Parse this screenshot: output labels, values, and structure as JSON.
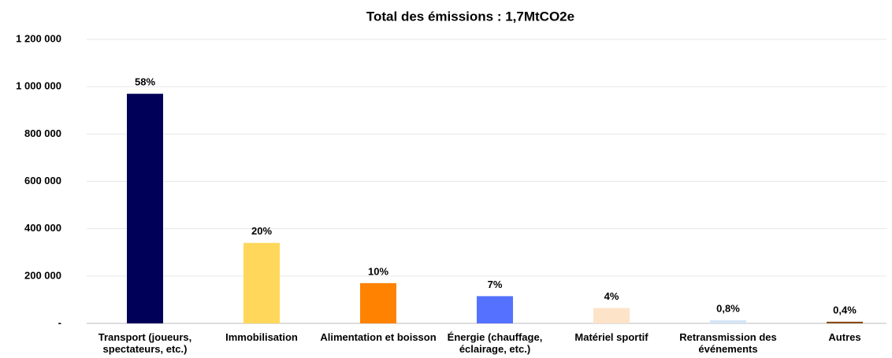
{
  "chart_data": {
    "type": "bar",
    "title": "Total des émissions : 1,7MtCO2e",
    "categories": [
      "Transport (joueurs, spectateurs, etc.)",
      "Immobilisation",
      "Alimentation et boisson",
      "Énergie (chauffage, éclairage, etc.)",
      "Matériel sportif",
      "Retransmission des événements",
      "Autres"
    ],
    "values": [
      970000,
      340000,
      170000,
      115000,
      65000,
      13000,
      7000
    ],
    "percentage_labels": [
      "58%",
      "20%",
      "10%",
      "7%",
      "4%",
      "0,8%",
      "0,4%"
    ],
    "colors": [
      "#000058",
      "#ffd75a",
      "#ff8200",
      "#5571ff",
      "#fde4c8",
      "#d5e5f5",
      "#8a4a14"
    ],
    "ylim": [
      0,
      1200000
    ],
    "yticks": [
      {
        "value": 0,
        "label": "-"
      },
      {
        "value": 200000,
        "label": "200 000"
      },
      {
        "value": 400000,
        "label": "400 000"
      },
      {
        "value": 600000,
        "label": "600 000"
      },
      {
        "value": 800000,
        "label": "800 000"
      },
      {
        "value": 1000000,
        "label": "1 000 000"
      },
      {
        "value": 1200000,
        "label": "1 200 000"
      }
    ],
    "grid": true
  }
}
